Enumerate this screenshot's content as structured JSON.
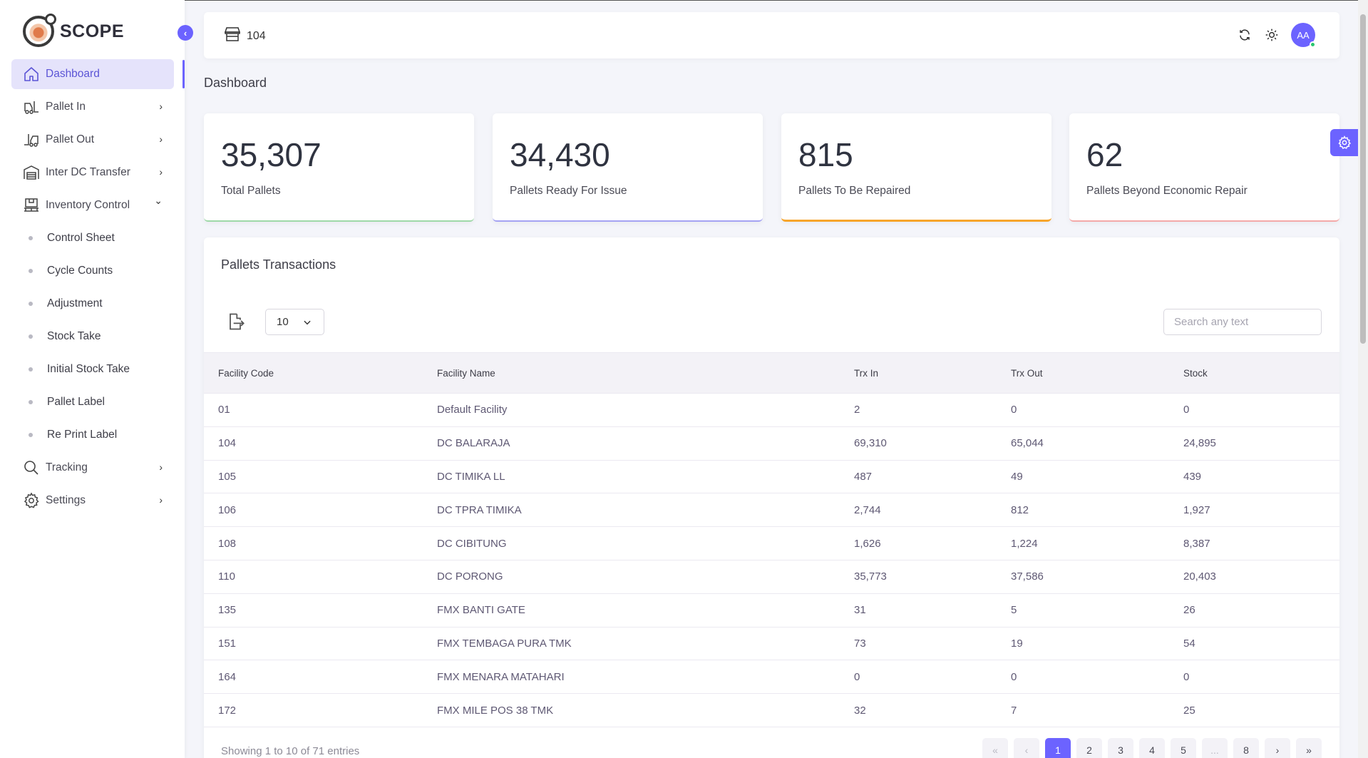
{
  "brand": {
    "name": "SCOPE"
  },
  "sidebar": {
    "items": [
      {
        "label": "Dashboard",
        "icon": "home-icon",
        "active": true,
        "expandable": false
      },
      {
        "label": "Pallet In",
        "icon": "forklift-in-icon",
        "expandable": true,
        "chevron": "›"
      },
      {
        "label": "Pallet Out",
        "icon": "forklift-out-icon",
        "expandable": true,
        "chevron": "›"
      },
      {
        "label": "Inter DC Transfer",
        "icon": "warehouse-icon",
        "expandable": true,
        "chevron": "›"
      },
      {
        "label": "Inventory Control",
        "icon": "pallet-stack-icon",
        "expandable": true,
        "expanded": true,
        "chevron": "⌄"
      }
    ],
    "sub_items": [
      {
        "label": "Control Sheet"
      },
      {
        "label": "Cycle Counts"
      },
      {
        "label": "Adjustment"
      },
      {
        "label": "Stock Take"
      },
      {
        "label": "Initial Stock Take"
      },
      {
        "label": "Pallet Label"
      },
      {
        "label": "Re Print Label"
      }
    ],
    "bottom_items": [
      {
        "label": "Tracking",
        "icon": "search-icon",
        "chevron": "›"
      },
      {
        "label": "Settings",
        "icon": "gear-icon",
        "chevron": "›"
      }
    ],
    "collapse_glyph": "‹"
  },
  "header": {
    "facility": "104",
    "avatar_initials": "AA"
  },
  "page": {
    "title": "Dashboard"
  },
  "stats": [
    {
      "value": "35,307",
      "label": "Total Pallets",
      "accent": "#9fd9a8"
    },
    {
      "value": "34,430",
      "label": "Pallets Ready For Issue",
      "accent": "#a5a3f3"
    },
    {
      "value": "815",
      "label": "Pallets To Be Repaired",
      "accent": "#f7a52b"
    },
    {
      "value": "62",
      "label": "Pallets Beyond Economic Repair",
      "accent": "#f4a9a9"
    }
  ],
  "transactions": {
    "title": "Pallets Transactions",
    "page_size": "10",
    "search_placeholder": "Search any text",
    "columns": [
      "Facility Code",
      "Facility Name",
      "Trx In",
      "Trx Out",
      "Stock"
    ],
    "rows": [
      [
        "01",
        "Default Facility",
        "2",
        "0",
        "0"
      ],
      [
        "104",
        "DC BALARAJA",
        "69,310",
        "65,044",
        "24,895"
      ],
      [
        "105",
        "DC TIMIKA LL",
        "487",
        "49",
        "439"
      ],
      [
        "106",
        "DC TPRA TIMIKA",
        "2,744",
        "812",
        "1,927"
      ],
      [
        "108",
        "DC CIBITUNG",
        "1,626",
        "1,224",
        "8,387"
      ],
      [
        "110",
        "DC PORONG",
        "35,773",
        "37,586",
        "20,403"
      ],
      [
        "135",
        "FMX BANTI GATE",
        "31",
        "5",
        "26"
      ],
      [
        "151",
        "FMX TEMBAGA PURA TMK",
        "73",
        "19",
        "54"
      ],
      [
        "164",
        "FMX MENARA MATAHARI",
        "0",
        "0",
        "0"
      ],
      [
        "172",
        "FMX MILE POS 38 TMK",
        "32",
        "7",
        "25"
      ]
    ],
    "footer_info": "Showing 1 to 10 of 71 entries",
    "pagination": {
      "first": "«",
      "prev": "‹",
      "pages": [
        "1",
        "2",
        "3",
        "4",
        "5"
      ],
      "ellipsis": "...",
      "last_page": "8",
      "next": "›",
      "last": "»",
      "current": "1"
    }
  },
  "colors": {
    "primary": "#6c63ff",
    "active_bg": "#e5e3fb",
    "online": "#28c76f"
  }
}
